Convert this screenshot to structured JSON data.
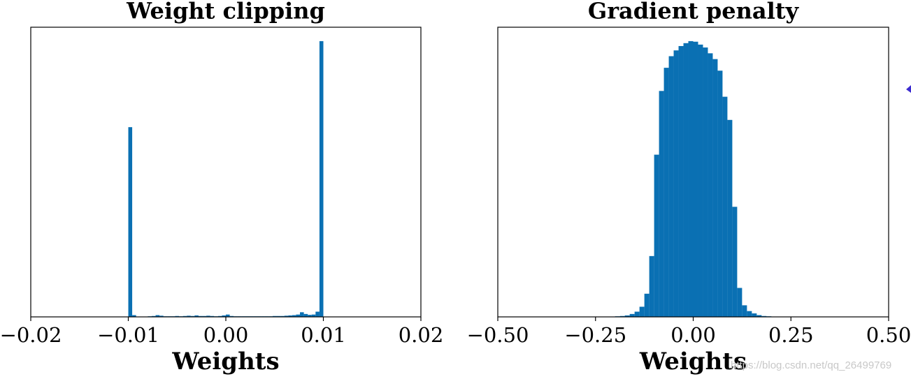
{
  "chart_data": [
    {
      "type": "histogram",
      "title": "Weight clipping",
      "xlabel": "Weights",
      "bins": [
        -0.01,
        -0.0096,
        -0.0092,
        -0.0088,
        -0.0084,
        -0.008,
        -0.0076,
        -0.0072,
        -0.0068,
        -0.0064,
        -0.006,
        -0.0056,
        -0.0052,
        -0.0048,
        -0.0044,
        -0.004,
        -0.0036,
        -0.0032,
        -0.0028,
        -0.0024,
        -0.002,
        -0.0016,
        -0.0012,
        -0.0008,
        -0.0004,
        0,
        0.0004,
        0.0008,
        0.0012,
        0.0016,
        0.002,
        0.0024,
        0.0028,
        0.0032,
        0.0036,
        0.004,
        0.0044,
        0.0048,
        0.0052,
        0.0056,
        0.006,
        0.0064,
        0.0068,
        0.0072,
        0.0076,
        0.008,
        0.0084,
        0.0088,
        0.0092,
        0.0096,
        0.01
      ],
      "values": [
        65.5,
        0.6,
        0.1,
        0.1,
        0.1,
        0.2,
        0.3,
        0.6,
        0.4,
        0.2,
        0.2,
        0.2,
        0.3,
        0.2,
        0.3,
        0.4,
        0.3,
        0.5,
        0.3,
        0.3,
        0.4,
        0.3,
        0.2,
        0.3,
        0.5,
        0.8,
        0.3,
        0.2,
        0.2,
        0.2,
        0.2,
        0.2,
        0.2,
        0.2,
        0.2,
        0.2,
        0.2,
        0.3,
        0.3,
        0.3,
        0.4,
        0.5,
        0.6,
        0.8,
        1.6,
        1.0,
        0.7,
        0.8,
        1.8,
        95.2
      ],
      "color": "#0a70b3",
      "xlim": [
        -0.02,
        0.02
      ],
      "xticks": [
        {
          "value": -0.02,
          "label": "−0.02"
        },
        {
          "value": -0.01,
          "label": "−0.01"
        },
        {
          "value": 0,
          "label": "0.00"
        },
        0.01,
        0.02
      ],
      "ylim": [
        0,
        100
      ]
    },
    {
      "type": "histogram",
      "title": "Gradient penalty",
      "xlabel": "Weights",
      "bins": [
        -0.25,
        -0.2375,
        -0.225,
        -0.2125,
        -0.2,
        -0.1875,
        -0.175,
        -0.1625,
        -0.15,
        -0.1375,
        -0.125,
        -0.1125,
        -0.1,
        -0.0875,
        -0.075,
        -0.0625,
        -0.05,
        -0.0375,
        -0.025,
        -0.0125,
        0,
        0.0125,
        0.025,
        0.0375,
        0.05,
        0.0625,
        0.075,
        0.0875,
        0.1,
        0.1125,
        0.125,
        0.1375,
        0.15,
        0.1625,
        0.175,
        0.1875,
        0.2,
        0.2125,
        0.225,
        0.2375,
        0.25
      ],
      "values": [
        0,
        0,
        0.1,
        0.1,
        0.2,
        0.3,
        0.5,
        1.0,
        1.8,
        3.5,
        8,
        21,
        56,
        78,
        86,
        90,
        92,
        93.5,
        94.5,
        95.2,
        95,
        94,
        93,
        91,
        89,
        85,
        76,
        68,
        38,
        10,
        4,
        2,
        1.2,
        0.6,
        0.3,
        0.2,
        0.1,
        0.1,
        0,
        0
      ],
      "color": "#0a70b3",
      "xlim": [
        -0.5,
        0.5
      ],
      "xticks": [
        {
          "value": -0.5,
          "label": "−0.50"
        },
        {
          "value": -0.25,
          "label": "−0.25"
        },
        {
          "value": 0,
          "label": "0.00"
        },
        0.25,
        {
          "value": 0.5,
          "label": "0.50"
        }
      ],
      "ylim": [
        0,
        100
      ]
    }
  ],
  "watermark": "https://blog.csdn.net/qq_26499769"
}
